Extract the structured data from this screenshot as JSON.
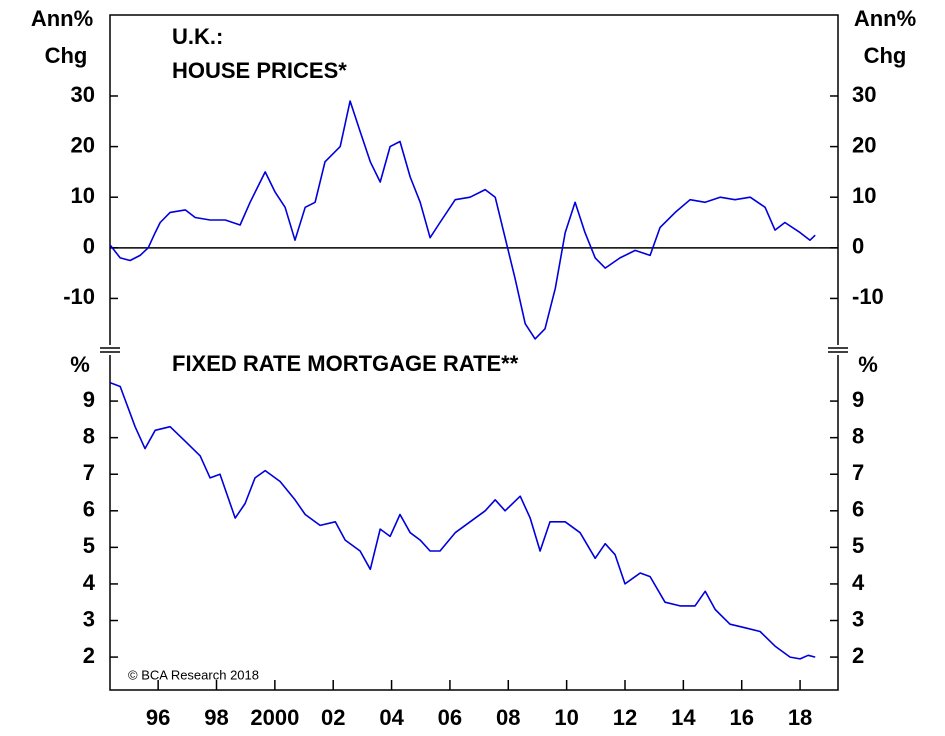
{
  "chart_data": [
    {
      "type": "line",
      "title": [
        "U.K.:",
        "HOUSE PRICES*"
      ],
      "ylabel": [
        "Ann%",
        "Chg"
      ],
      "color": "#0000dd",
      "xlim": [
        1994.35,
        2019.3
      ],
      "ylim": [
        -19.2,
        46
      ],
      "yticks": [
        -10,
        0,
        10,
        20,
        30
      ],
      "reference_line": 0,
      "x": [
        1994.36,
        1994.7,
        1995.04,
        1995.38,
        1995.66,
        1995.9,
        1996.07,
        1996.41,
        1996.93,
        1997.27,
        1997.78,
        1998.3,
        1998.81,
        1999.15,
        1999.67,
        2000.01,
        2000.35,
        2000.69,
        2001.04,
        2001.38,
        2001.72,
        2002.24,
        2002.58,
        2002.92,
        2003.27,
        2003.61,
        2003.95,
        2004.29,
        2004.64,
        2004.98,
        2005.32,
        2005.66,
        2006.18,
        2006.69,
        2007.21,
        2007.55,
        2007.89,
        2008.23,
        2008.58,
        2008.92,
        2009.26,
        2009.61,
        2009.95,
        2010.29,
        2010.63,
        2010.98,
        2011.32,
        2011.83,
        2012.35,
        2012.86,
        2013.2,
        2013.72,
        2014.23,
        2014.75,
        2015.26,
        2015.77,
        2016.29,
        2016.8,
        2017.14,
        2017.48,
        2018.0,
        2018.34,
        2018.52
      ],
      "values": [
        0.5,
        -2,
        -2.5,
        -1.5,
        0,
        3,
        5,
        7,
        7.5,
        6,
        5.5,
        5.5,
        4.5,
        9,
        15,
        11,
        8,
        1.5,
        8,
        9,
        17,
        20,
        29,
        23,
        17,
        13,
        20,
        21,
        14,
        9,
        2,
        5,
        9.5,
        10,
        11.5,
        10,
        2,
        -6,
        -15,
        -18,
        -16,
        -8,
        3,
        9,
        3,
        -2,
        -4,
        -2,
        -0.5,
        -1.5,
        4,
        7,
        9.5,
        9,
        10,
        9.5,
        10,
        8,
        3.5,
        5,
        3,
        1.5,
        2.5
      ]
    },
    {
      "type": "line",
      "title": "FIXED RATE MORTGAGE RATE**",
      "ylabel": "%",
      "annotation": "© BCA Research 2018",
      "color": "#0000dd",
      "xlim": [
        1994.35,
        2019.3
      ],
      "xticks": [
        {
          "value": 1996,
          "label": "96"
        },
        {
          "value": 1998,
          "label": "98"
        },
        2000,
        {
          "value": 2002,
          "label": "02"
        },
        {
          "value": 2004,
          "label": "04"
        },
        {
          "value": 2006,
          "label": "06"
        },
        {
          "value": 2008,
          "label": "08"
        },
        {
          "value": 2010,
          "label": "10"
        },
        {
          "value": 2012,
          "label": "12"
        },
        {
          "value": 2014,
          "label": "14"
        },
        {
          "value": 2016,
          "label": "16"
        },
        {
          "value": 2018,
          "label": "18"
        }
      ],
      "ylim": [
        1.1,
        10.26
      ],
      "yticks": [
        2,
        3,
        4,
        5,
        6,
        7,
        8,
        9
      ],
      "x": [
        1994.36,
        1994.7,
        1995.21,
        1995.55,
        1995.9,
        1996.41,
        1996.93,
        1997.44,
        1997.78,
        1998.12,
        1998.64,
        1998.98,
        1999.32,
        1999.67,
        2000.18,
        2000.69,
        2001.04,
        2001.55,
        2002.07,
        2002.41,
        2002.92,
        2003.27,
        2003.61,
        2003.95,
        2004.29,
        2004.64,
        2004.98,
        2005.32,
        2005.66,
        2006.18,
        2006.69,
        2007.21,
        2007.55,
        2007.89,
        2008.41,
        2008.75,
        2009.09,
        2009.43,
        2009.95,
        2010.46,
        2010.98,
        2011.32,
        2011.66,
        2012.0,
        2012.52,
        2012.86,
        2013.37,
        2013.89,
        2014.4,
        2014.75,
        2015.09,
        2015.6,
        2016.12,
        2016.63,
        2017.14,
        2017.66,
        2018.0,
        2018.28,
        2018.52
      ],
      "values": [
        9.5,
        9.4,
        8.3,
        7.7,
        8.2,
        8.3,
        7.9,
        7.5,
        6.9,
        7.0,
        5.8,
        6.2,
        6.9,
        7.1,
        6.8,
        6.3,
        5.9,
        5.6,
        5.7,
        5.2,
        4.9,
        4.4,
        5.5,
        5.3,
        5.9,
        5.4,
        5.2,
        4.9,
        4.9,
        5.4,
        5.7,
        6.0,
        6.3,
        6.0,
        6.4,
        5.8,
        4.9,
        5.7,
        5.7,
        5.4,
        4.7,
        5.1,
        4.8,
        4.0,
        4.3,
        4.2,
        3.5,
        3.4,
        3.4,
        3.8,
        3.3,
        2.9,
        2.8,
        2.7,
        2.3,
        2.0,
        1.95,
        2.05,
        2.0
      ]
    }
  ]
}
